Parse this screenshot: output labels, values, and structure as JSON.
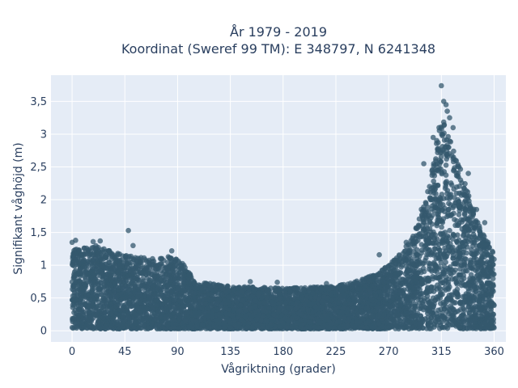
{
  "chart_data": {
    "type": "scatter",
    "title_line1": "År 1979 - 2019",
    "title_line2": "Koordinat (Sweref 99 TM): E 348797, N 6241348",
    "xlabel": "Vågriktning (grader)",
    "ylabel": "Signifikant våghöjd (m)",
    "xlim": [
      -18,
      370
    ],
    "ylim": [
      -0.17,
      3.9
    ],
    "xticks": [
      0,
      45,
      90,
      135,
      180,
      225,
      270,
      315,
      360
    ],
    "xtick_labels": [
      "0",
      "45",
      "90",
      "135",
      "180",
      "225",
      "270",
      "315",
      "360"
    ],
    "yticks": [
      0,
      0.5,
      1,
      1.5,
      2,
      2.5,
      3,
      3.5
    ],
    "ytick_labels": [
      "0",
      "0,5",
      "1",
      "1,5",
      "2",
      "2,5",
      "3",
      "3,5"
    ],
    "grid": true,
    "colors": {
      "marker": "#34586e",
      "plot_bg": "#e5ecf6",
      "grid": "#ffffff",
      "text": "#2a3f5f"
    },
    "envelope": [
      {
        "x": 0,
        "ymax": 1.25
      },
      {
        "x": 20,
        "ymax": 1.3
      },
      {
        "x": 45,
        "ymax": 1.15
      },
      {
        "x": 70,
        "ymax": 1.1
      },
      {
        "x": 90,
        "ymax": 1.15
      },
      {
        "x": 105,
        "ymax": 0.75
      },
      {
        "x": 135,
        "ymax": 0.68
      },
      {
        "x": 180,
        "ymax": 0.65
      },
      {
        "x": 225,
        "ymax": 0.68
      },
      {
        "x": 250,
        "ymax": 0.8
      },
      {
        "x": 270,
        "ymax": 1.0
      },
      {
        "x": 290,
        "ymax": 1.4
      },
      {
        "x": 305,
        "ymax": 2.3
      },
      {
        "x": 315,
        "ymax": 3.3
      },
      {
        "x": 325,
        "ymax": 2.8
      },
      {
        "x": 340,
        "ymax": 2.0
      },
      {
        "x": 350,
        "ymax": 1.5
      },
      {
        "x": 360,
        "ymax": 1.2
      }
    ],
    "outliers": [
      {
        "x": 0,
        "y": 1.35
      },
      {
        "x": 3,
        "y": 1.38
      },
      {
        "x": 18,
        "y": 1.36
      },
      {
        "x": 24,
        "y": 1.37
      },
      {
        "x": 48,
        "y": 1.53
      },
      {
        "x": 52,
        "y": 1.3
      },
      {
        "x": 85,
        "y": 1.22
      },
      {
        "x": 152,
        "y": 0.75
      },
      {
        "x": 175,
        "y": 0.74
      },
      {
        "x": 217,
        "y": 0.72
      },
      {
        "x": 262,
        "y": 1.16
      },
      {
        "x": 285,
        "y": 1.35
      },
      {
        "x": 300,
        "y": 2.55
      },
      {
        "x": 308,
        "y": 2.95
      },
      {
        "x": 313,
        "y": 3.1
      },
      {
        "x": 315,
        "y": 3.74
      },
      {
        "x": 317,
        "y": 3.5
      },
      {
        "x": 319,
        "y": 3.45
      },
      {
        "x": 320,
        "y": 3.35
      },
      {
        "x": 322,
        "y": 3.25
      },
      {
        "x": 325,
        "y": 3.1
      },
      {
        "x": 330,
        "y": 2.5
      },
      {
        "x": 338,
        "y": 2.4
      },
      {
        "x": 345,
        "y": 1.85
      },
      {
        "x": 352,
        "y": 1.65
      }
    ]
  }
}
